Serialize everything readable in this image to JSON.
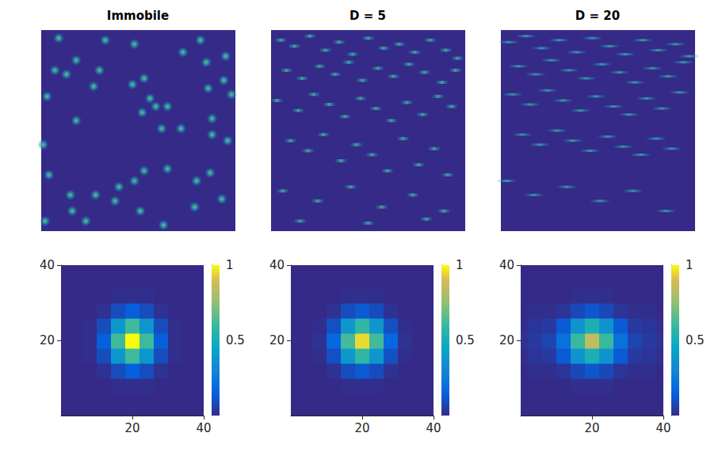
{
  "chart_data": [
    {
      "type": "scatter",
      "title": "Immobile",
      "marker": "spot",
      "tick_labels": false,
      "xlim": [
        0,
        100
      ],
      "ylim": [
        0,
        100
      ],
      "x": [
        9,
        48,
        33,
        82,
        73,
        95,
        85,
        18,
        7,
        30,
        13,
        27,
        53,
        47,
        86,
        94,
        98,
        56,
        59,
        65,
        52,
        62,
        72,
        88,
        3,
        18,
        88,
        1,
        4,
        15,
        28,
        40,
        48,
        53,
        38,
        51,
        2,
        16,
        63,
        65,
        79,
        87,
        93,
        96,
        80,
        23
      ],
      "y": [
        96,
        93,
        95,
        95,
        89,
        87,
        84,
        85,
        80,
        80,
        78,
        72,
        76,
        73,
        71,
        75,
        68,
        66,
        62,
        62,
        59,
        51,
        51,
        48,
        67,
        55,
        56,
        43,
        28,
        18,
        18,
        22,
        25,
        30,
        15,
        10,
        5,
        10,
        3,
        31,
        12,
        29,
        16,
        45,
        25,
        5
      ]
    },
    {
      "type": "scatter",
      "title": "D = 5",
      "marker": "streak",
      "tick_labels": false,
      "xlim": [
        0,
        100
      ],
      "ylim": [
        0,
        100
      ],
      "x": [
        5,
        12,
        20,
        28,
        35,
        42,
        50,
        58,
        66,
        74,
        82,
        90,
        96,
        8,
        16,
        25,
        33,
        40,
        47,
        55,
        63,
        71,
        79,
        88,
        95,
        3,
        14,
        22,
        30,
        38,
        46,
        54,
        62,
        70,
        78,
        86,
        93,
        10,
        19,
        27,
        36,
        44,
        52,
        60,
        68,
        76,
        84,
        91,
        6,
        24,
        41,
        57,
        73,
        89,
        15,
        50,
        80
      ],
      "y": [
        95,
        92,
        97,
        90,
        94,
        88,
        96,
        91,
        93,
        89,
        95,
        90,
        86,
        80,
        76,
        82,
        78,
        84,
        75,
        81,
        77,
        83,
        79,
        74,
        80,
        65,
        60,
        68,
        63,
        57,
        66,
        61,
        55,
        64,
        58,
        67,
        62,
        45,
        40,
        48,
        35,
        43,
        38,
        30,
        46,
        33,
        41,
        28,
        20,
        15,
        22,
        12,
        18,
        10,
        5,
        4,
        6
      ]
    },
    {
      "type": "scatter",
      "title": "D = 20",
      "marker": "long streak",
      "tick_labels": false,
      "xlim": [
        0,
        100
      ],
      "ylim": [
        0,
        100
      ],
      "x": [
        4,
        13,
        21,
        30,
        39,
        47,
        56,
        64,
        73,
        81,
        90,
        97,
        9,
        18,
        26,
        35,
        44,
        52,
        61,
        69,
        78,
        86,
        94,
        6,
        15,
        24,
        32,
        41,
        49,
        58,
        66,
        75,
        83,
        92,
        11,
        20,
        29,
        37,
        46,
        55,
        63,
        72,
        80,
        88,
        3,
        17,
        34,
        51,
        68,
        85
      ],
      "y": [
        94,
        97,
        91,
        95,
        89,
        96,
        92,
        88,
        95,
        90,
        93,
        87,
        82,
        78,
        85,
        80,
        76,
        83,
        79,
        74,
        81,
        77,
        84,
        68,
        63,
        70,
        65,
        60,
        67,
        62,
        58,
        66,
        61,
        69,
        48,
        43,
        50,
        45,
        40,
        47,
        42,
        38,
        46,
        41,
        25,
        18,
        22,
        15,
        20,
        10
      ]
    },
    {
      "type": "surface",
      "x": [
        0,
        4,
        8,
        12,
        16,
        20,
        24,
        28,
        32,
        36,
        40
      ],
      "y": [
        0,
        4,
        8,
        12,
        16,
        20,
        24,
        28,
        32,
        36,
        40
      ],
      "xlim": [
        0,
        40
      ],
      "ylim": [
        0,
        40
      ],
      "xticks": [
        20,
        40
      ],
      "yticks": [
        20,
        40
      ],
      "zlim": [
        0,
        1
      ],
      "zticks": [
        0.5,
        1
      ],
      "z": [
        [
          0,
          0,
          0,
          0,
          0,
          0,
          0,
          0,
          0,
          0,
          0
        ],
        [
          0,
          0,
          0,
          0,
          0,
          0,
          0,
          0,
          0,
          0,
          0
        ],
        [
          0,
          0,
          0,
          0,
          0.01,
          0.01,
          0.01,
          0,
          0,
          0,
          0
        ],
        [
          0,
          0,
          0,
          0.02,
          0.09,
          0.14,
          0.09,
          0.02,
          0,
          0,
          0
        ],
        [
          0,
          0,
          0.01,
          0.09,
          0.37,
          0.61,
          0.37,
          0.09,
          0.01,
          0,
          0
        ],
        [
          0,
          0,
          0.01,
          0.14,
          0.61,
          1,
          0.61,
          0.14,
          0.01,
          0,
          0
        ],
        [
          0,
          0,
          0.01,
          0.09,
          0.37,
          0.61,
          0.37,
          0.09,
          0.01,
          0,
          0
        ],
        [
          0,
          0,
          0,
          0.02,
          0.09,
          0.14,
          0.09,
          0.02,
          0,
          0,
          0
        ],
        [
          0,
          0,
          0,
          0,
          0.01,
          0.01,
          0.01,
          0,
          0,
          0,
          0
        ],
        [
          0,
          0,
          0,
          0,
          0,
          0,
          0,
          0,
          0,
          0,
          0
        ],
        [
          0,
          0,
          0,
          0,
          0,
          0,
          0,
          0,
          0,
          0,
          0
        ]
      ]
    },
    {
      "type": "surface",
      "x": [
        0,
        4,
        8,
        12,
        16,
        20,
        24,
        28,
        32,
        36,
        40
      ],
      "y": [
        0,
        4,
        8,
        12,
        16,
        20,
        24,
        28,
        32,
        36,
        40
      ],
      "xlim": [
        0,
        40
      ],
      "ylim": [
        0,
        40
      ],
      "xticks": [
        20,
        40
      ],
      "yticks": [
        20,
        40
      ],
      "zlim": [
        0,
        1
      ],
      "zticks": [
        0.5,
        1
      ],
      "z": [
        [
          0,
          0,
          0,
          0,
          0,
          0,
          0,
          0,
          0,
          0,
          0
        ],
        [
          0,
          0,
          0,
          0,
          0,
          0,
          0,
          0,
          0,
          0,
          0
        ],
        [
          0,
          0,
          0,
          0,
          0.01,
          0.01,
          0.01,
          0,
          0,
          0,
          0
        ],
        [
          0,
          0,
          0,
          0.02,
          0.09,
          0.13,
          0.09,
          0.02,
          0,
          0,
          0
        ],
        [
          0,
          0,
          0.01,
          0.1,
          0.38,
          0.58,
          0.38,
          0.1,
          0.01,
          0,
          0
        ],
        [
          0,
          0,
          0.02,
          0.17,
          0.62,
          0.95,
          0.62,
          0.17,
          0.02,
          0,
          0
        ],
        [
          0,
          0,
          0.01,
          0.1,
          0.38,
          0.58,
          0.38,
          0.1,
          0.01,
          0,
          0
        ],
        [
          0,
          0,
          0,
          0.02,
          0.09,
          0.13,
          0.09,
          0.02,
          0,
          0,
          0
        ],
        [
          0,
          0,
          0,
          0,
          0.01,
          0.01,
          0.01,
          0,
          0,
          0,
          0
        ],
        [
          0,
          0,
          0,
          0,
          0,
          0,
          0,
          0,
          0,
          0,
          0
        ],
        [
          0,
          0,
          0,
          0,
          0,
          0,
          0,
          0,
          0,
          0,
          0
        ]
      ]
    },
    {
      "type": "surface",
      "x": [
        0,
        4,
        8,
        12,
        16,
        20,
        24,
        28,
        32,
        36,
        40
      ],
      "y": [
        0,
        4,
        8,
        12,
        16,
        20,
        24,
        28,
        32,
        36,
        40
      ],
      "xlim": [
        0,
        40
      ],
      "ylim": [
        0,
        40
      ],
      "xticks": [
        20,
        40
      ],
      "yticks": [
        20,
        40
      ],
      "zlim": [
        0,
        1
      ],
      "zticks": [
        0.5,
        1
      ],
      "z": [
        [
          0,
          0,
          0,
          0,
          0,
          0,
          0,
          0,
          0,
          0,
          0
        ],
        [
          0,
          0,
          0,
          0,
          0,
          0,
          0,
          0,
          0,
          0,
          0
        ],
        [
          0,
          0,
          0,
          0,
          0.01,
          0.01,
          0.01,
          0,
          0,
          0,
          0
        ],
        [
          0,
          0.01,
          0.01,
          0.03,
          0.08,
          0.12,
          0.08,
          0.03,
          0.01,
          0.01,
          0
        ],
        [
          0.01,
          0.03,
          0.04,
          0.13,
          0.36,
          0.52,
          0.36,
          0.13,
          0.04,
          0.03,
          0.01
        ],
        [
          0.02,
          0.04,
          0.07,
          0.21,
          0.6,
          0.85,
          0.6,
          0.21,
          0.07,
          0.04,
          0.02
        ],
        [
          0.01,
          0.03,
          0.04,
          0.13,
          0.36,
          0.52,
          0.36,
          0.13,
          0.04,
          0.03,
          0.01
        ],
        [
          0,
          0.01,
          0.01,
          0.03,
          0.08,
          0.12,
          0.08,
          0.03,
          0.01,
          0.01,
          0
        ],
        [
          0,
          0,
          0,
          0,
          0.01,
          0.01,
          0.01,
          0,
          0,
          0,
          0
        ],
        [
          0,
          0,
          0,
          0,
          0,
          0,
          0,
          0,
          0,
          0,
          0
        ],
        [
          0,
          0,
          0,
          0,
          0,
          0,
          0,
          0,
          0,
          0,
          0
        ]
      ]
    }
  ]
}
